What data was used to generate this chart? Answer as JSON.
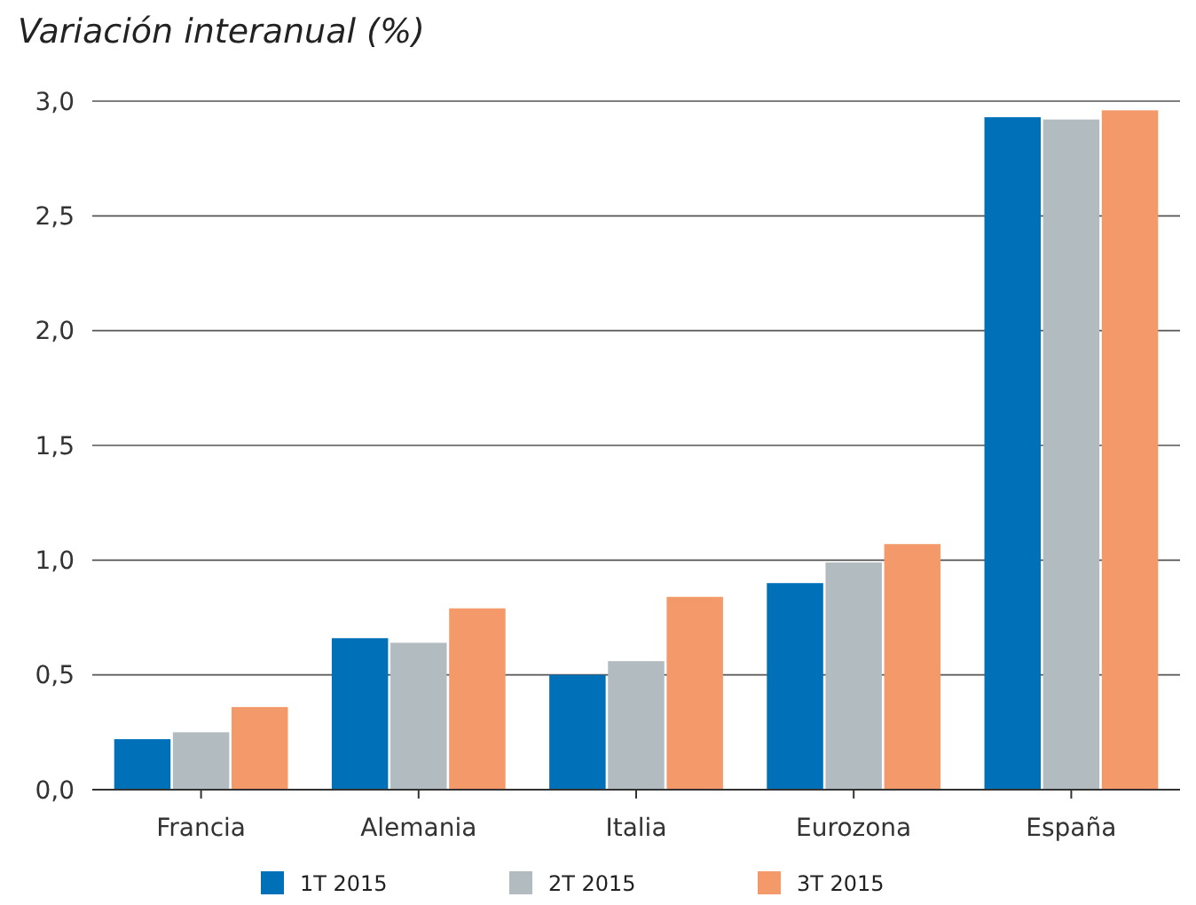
{
  "chart_data": {
    "type": "bar",
    "title": "Variación interanual (%)",
    "categories": [
      "Francia",
      "Alemania",
      "Italia",
      "Eurozona",
      "España"
    ],
    "series": [
      {
        "name": "1T 2015",
        "color": "#0070b8",
        "values": [
          0.22,
          0.66,
          0.5,
          0.9,
          2.93
        ]
      },
      {
        "name": "2T 2015",
        "color": "#b2bcc0",
        "values": [
          0.25,
          0.64,
          0.56,
          0.99,
          2.92
        ]
      },
      {
        "name": "3T 2015",
        "color": "#f4996a",
        "values": [
          0.36,
          0.79,
          0.84,
          1.07,
          2.96
        ]
      }
    ],
    "ylim": [
      0,
      3
    ],
    "yticks": [
      {
        "value": 0,
        "label": "0,0"
      },
      {
        "value": 0.5,
        "label": "0,5"
      },
      {
        "value": 1,
        "label": "1,0"
      },
      {
        "value": 1.5,
        "label": "1,5"
      },
      {
        "value": 2,
        "label": "2,0"
      },
      {
        "value": 2.5,
        "label": "2,5"
      },
      {
        "value": 3,
        "label": "3,0"
      }
    ],
    "grid": "y",
    "legend": "bottom"
  }
}
